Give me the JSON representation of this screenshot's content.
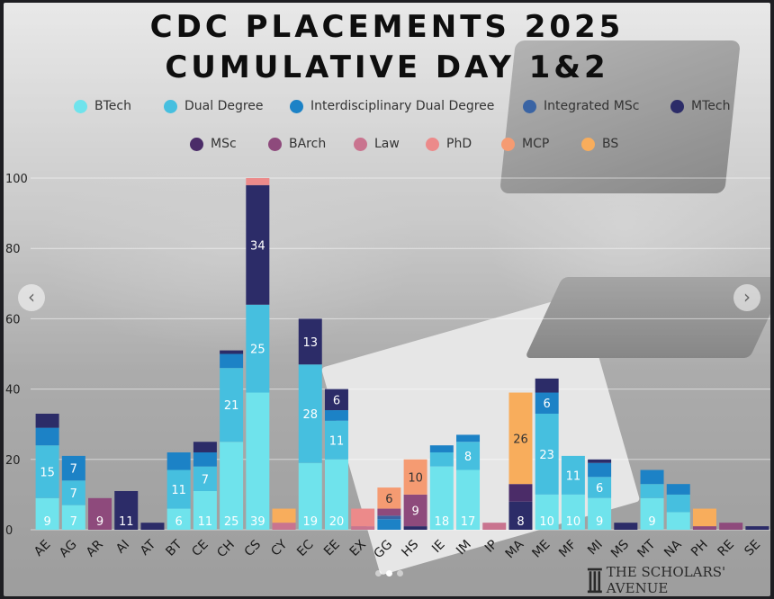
{
  "colors": {
    "page_bg": "#1e1e22",
    "title": "#0e0e0e",
    "label_light": "#ffffff",
    "label_dark": "#333333"
  },
  "title_line1": "CDC PLACEMENTS 2025",
  "title_line2": "CUMULATIVE DAY 1&2",
  "legend": {
    "position": "top",
    "items": [
      {
        "label": "BTech",
        "color": "#6fe3ec"
      },
      {
        "label": "Dual Degree",
        "color": "#46bfdf"
      },
      {
        "label": "Interdisciplinary Dual Degree",
        "color": "#1c82c6"
      },
      {
        "label": "Integrated MSc",
        "color": "#3a64a4"
      },
      {
        "label": "MTech",
        "color": "#2c2c68"
      },
      {
        "label": "MSc",
        "color": "#4b2c68"
      },
      {
        "label": "BArch",
        "color": "#8e4a7c"
      },
      {
        "label": "Law",
        "color": "#c9748f"
      },
      {
        "label": "PhD",
        "color": "#ec8a8a"
      },
      {
        "label": "MCP",
        "color": "#f59b72"
      },
      {
        "label": "BS",
        "color": "#f8ad5c"
      }
    ]
  },
  "carousel": {
    "prev_icon": "‹",
    "next_icon": "›",
    "dots": 3,
    "active_dot": 1
  },
  "watermark": {
    "icon": "pillar-icon",
    "text": "THE SCHOLARS' AVENUE"
  },
  "chart_data": {
    "type": "bar",
    "stacked": true,
    "title": "CDC PLACEMENTS 2025 CUMULATIVE DAY 1&2",
    "xlabel": "",
    "ylabel": "",
    "ylim": [
      0,
      100
    ],
    "yticks": [
      0,
      20,
      40,
      60,
      80,
      100
    ],
    "grid": true,
    "legend_placement": "top",
    "categories": [
      "AE",
      "AG",
      "AR",
      "AI",
      "AT",
      "BT",
      "CE",
      "CH",
      "CS",
      "CY",
      "EC",
      "EE",
      "EX",
      "GG",
      "HS",
      "IE",
      "IM",
      "IP",
      "MA",
      "ME",
      "MF",
      "MI",
      "MS",
      "MT",
      "NA",
      "PH",
      "RE",
      "SE"
    ],
    "series": [
      {
        "name": "BTech",
        "values": [
          9,
          7,
          0,
          0,
          0,
          6,
          11,
          25,
          39,
          0,
          19,
          20,
          0,
          0,
          0,
          18,
          17,
          0,
          0,
          10,
          10,
          9,
          0,
          9,
          5,
          0,
          0,
          0
        ]
      },
      {
        "name": "Dual Degree",
        "values": [
          15,
          7,
          0,
          0,
          0,
          11,
          7,
          21,
          25,
          0,
          28,
          11,
          0,
          0,
          0,
          4,
          8,
          0,
          0,
          23,
          11,
          6,
          0,
          4,
          5,
          0,
          0,
          0
        ]
      },
      {
        "name": "Interdisciplinary Dual Degree",
        "values": [
          5,
          7,
          0,
          0,
          0,
          5,
          4,
          4,
          0,
          0,
          0,
          3,
          0,
          3,
          0,
          2,
          2,
          0,
          0,
          6,
          0,
          4,
          0,
          4,
          3,
          0,
          0,
          0
        ]
      },
      {
        "name": "Integrated MSc",
        "values": [
          0,
          0,
          0,
          0,
          0,
          0,
          0,
          0,
          0,
          0,
          0,
          0,
          0,
          1,
          0,
          0,
          0,
          0,
          0,
          0,
          0,
          0,
          0,
          0,
          0,
          0,
          0,
          0
        ]
      },
      {
        "name": "MTech",
        "values": [
          4,
          0,
          0,
          11,
          2,
          0,
          3,
          1,
          34,
          0,
          13,
          6,
          0,
          0,
          1,
          0,
          0,
          0,
          8,
          4,
          0,
          1,
          2,
          0,
          0,
          0,
          0,
          1
        ]
      },
      {
        "name": "MSc",
        "values": [
          0,
          0,
          0,
          0,
          0,
          0,
          0,
          0,
          0,
          0,
          0,
          0,
          0,
          0,
          0,
          0,
          0,
          0,
          5,
          0,
          0,
          0,
          0,
          0,
          0,
          0,
          0,
          0
        ]
      },
      {
        "name": "BArch",
        "values": [
          0,
          0,
          9,
          0,
          0,
          0,
          0,
          0,
          0,
          0,
          0,
          0,
          0,
          2,
          9,
          0,
          0,
          0,
          0,
          0,
          0,
          0,
          0,
          0,
          0,
          1,
          2,
          0
        ]
      },
      {
        "name": "Law",
        "values": [
          0,
          0,
          0,
          0,
          0,
          0,
          0,
          0,
          0,
          2,
          0,
          0,
          1,
          0,
          0,
          0,
          0,
          2,
          0,
          0,
          0,
          0,
          0,
          0,
          0,
          0,
          0,
          0
        ]
      },
      {
        "name": "PhD",
        "values": [
          0,
          0,
          0,
          0,
          0,
          0,
          0,
          0,
          2,
          0,
          0,
          0,
          5,
          0,
          0,
          0,
          0,
          0,
          0,
          0,
          0,
          0,
          0,
          0,
          0,
          0,
          0,
          0
        ]
      },
      {
        "name": "MCP",
        "values": [
          0,
          0,
          0,
          0,
          0,
          0,
          0,
          0,
          0,
          0,
          0,
          0,
          0,
          6,
          10,
          0,
          0,
          0,
          0,
          0,
          0,
          0,
          0,
          0,
          0,
          0,
          0,
          0
        ]
      },
      {
        "name": "BS",
        "values": [
          0,
          0,
          0,
          0,
          0,
          0,
          0,
          0,
          0,
          4,
          0,
          0,
          0,
          0,
          0,
          0,
          0,
          0,
          26,
          0,
          0,
          0,
          0,
          0,
          0,
          5,
          0,
          0
        ]
      }
    ],
    "data_labels": [
      {
        "category": "AE",
        "series": "BTech",
        "text": "9"
      },
      {
        "category": "AE",
        "series": "Dual Degree",
        "text": "15"
      },
      {
        "category": "AG",
        "series": "BTech",
        "text": "7"
      },
      {
        "category": "AG",
        "series": "Dual Degree",
        "text": "7"
      },
      {
        "category": "AG",
        "series": "Interdisciplinary Dual Degree",
        "text": "7"
      },
      {
        "category": "AR",
        "series": "BArch",
        "text": "9"
      },
      {
        "category": "AI",
        "series": "MTech",
        "text": "11"
      },
      {
        "category": "BT",
        "series": "BTech",
        "text": "6"
      },
      {
        "category": "BT",
        "series": "Dual Degree",
        "text": "11"
      },
      {
        "category": "CE",
        "series": "BTech",
        "text": "11"
      },
      {
        "category": "CE",
        "series": "Dual Degree",
        "text": "7"
      },
      {
        "category": "CH",
        "series": "BTech",
        "text": "25"
      },
      {
        "category": "CH",
        "series": "Dual Degree",
        "text": "21"
      },
      {
        "category": "CS",
        "series": "BTech",
        "text": "39"
      },
      {
        "category": "CS",
        "series": "Dual Degree",
        "text": "25"
      },
      {
        "category": "CS",
        "series": "MTech",
        "text": "34"
      },
      {
        "category": "EC",
        "series": "BTech",
        "text": "19"
      },
      {
        "category": "EC",
        "series": "Dual Degree",
        "text": "28"
      },
      {
        "category": "EC",
        "series": "MTech",
        "text": "13"
      },
      {
        "category": "EE",
        "series": "BTech",
        "text": "20"
      },
      {
        "category": "EE",
        "series": "Dual Degree",
        "text": "11"
      },
      {
        "category": "EE",
        "series": "MTech",
        "text": "6"
      },
      {
        "category": "GG",
        "series": "MCP",
        "text": "6"
      },
      {
        "category": "HS",
        "series": "BArch",
        "text": "9"
      },
      {
        "category": "HS",
        "series": "MCP",
        "text": "10"
      },
      {
        "category": "IE",
        "series": "BTech",
        "text": "18"
      },
      {
        "category": "IM",
        "series": "BTech",
        "text": "17"
      },
      {
        "category": "IM",
        "series": "Dual Degree",
        "text": "8"
      },
      {
        "category": "MA",
        "series": "MTech",
        "text": "8"
      },
      {
        "category": "MA",
        "series": "BS",
        "text": "26"
      },
      {
        "category": "ME",
        "series": "BTech",
        "text": "10"
      },
      {
        "category": "ME",
        "series": "Dual Degree",
        "text": "23"
      },
      {
        "category": "ME",
        "series": "Interdisciplinary Dual Degree",
        "text": "6"
      },
      {
        "category": "MF",
        "series": "BTech",
        "text": "10"
      },
      {
        "category": "MF",
        "series": "Dual Degree",
        "text": "11"
      },
      {
        "category": "MI",
        "series": "BTech",
        "text": "9"
      },
      {
        "category": "MI",
        "series": "Dual Degree",
        "text": "6"
      },
      {
        "category": "MT",
        "series": "BTech",
        "text": "9"
      }
    ]
  }
}
